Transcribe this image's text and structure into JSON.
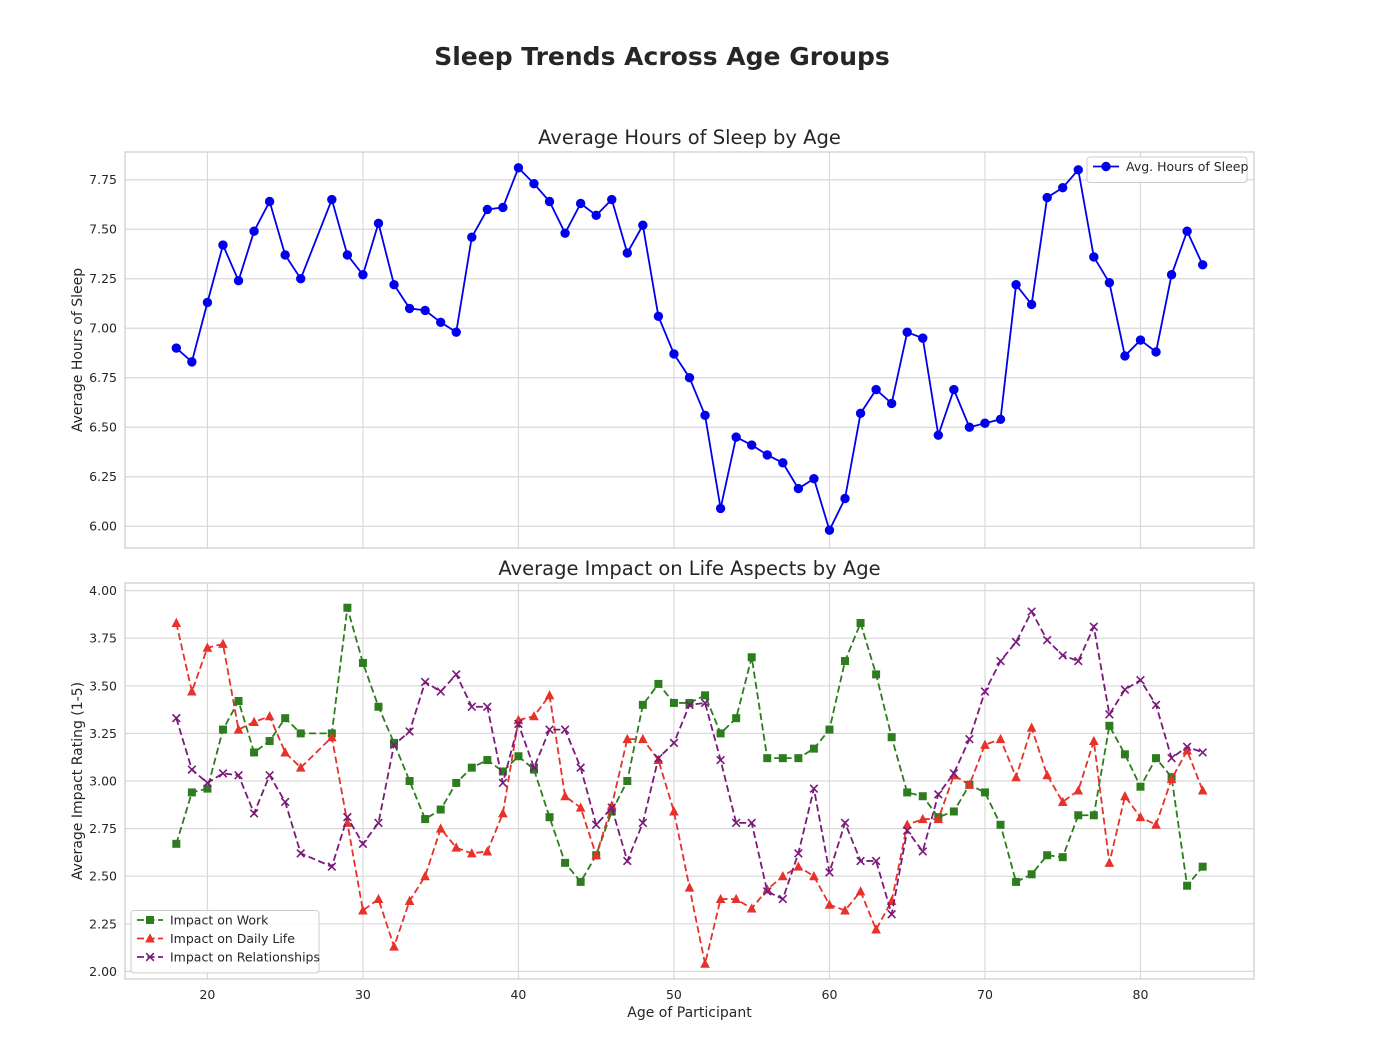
{
  "suptitle": "Sleep Trends Across Age Groups",
  "chart_data": [
    {
      "type": "line",
      "title": "Average Hours of Sleep by Age",
      "xlabel": "",
      "ylabel": "Average Hours of Sleep",
      "xlim": [
        14.7,
        87.3
      ],
      "ylim": [
        5.89,
        7.89
      ],
      "xticks": [
        20,
        30,
        40,
        50,
        60,
        70,
        80
      ],
      "yticks": [
        6.0,
        6.25,
        6.5,
        6.75,
        7.0,
        7.25,
        7.5,
        7.75
      ],
      "grid": true,
      "legend_position": "top-right",
      "x": [
        18,
        19,
        20,
        21,
        22,
        23,
        24,
        25,
        26,
        28,
        29,
        30,
        31,
        32,
        33,
        34,
        35,
        36,
        37,
        38,
        39,
        40,
        41,
        42,
        43,
        44,
        45,
        46,
        47,
        48,
        49,
        50,
        51,
        52,
        53,
        54,
        55,
        56,
        57,
        58,
        59,
        60,
        61,
        62,
        63,
        64,
        65,
        66,
        67,
        68,
        69,
        70,
        71,
        72,
        73,
        74,
        75,
        76,
        77,
        78,
        79,
        80,
        81,
        82,
        83,
        84
      ],
      "series": [
        {
          "name": "Avg. Hours of Sleep",
          "color": "#0000ee",
          "marker": "circle",
          "linestyle": "solid",
          "values": [
            6.9,
            6.83,
            7.13,
            7.42,
            7.24,
            7.49,
            7.64,
            7.37,
            7.25,
            7.65,
            7.37,
            7.27,
            7.53,
            7.22,
            7.1,
            7.09,
            7.03,
            6.98,
            7.46,
            7.6,
            7.61,
            7.81,
            7.73,
            7.64,
            7.48,
            7.63,
            7.57,
            7.65,
            7.38,
            7.52,
            7.06,
            6.87,
            6.75,
            6.56,
            6.09,
            6.45,
            6.41,
            6.36,
            6.32,
            6.19,
            6.24,
            5.98,
            6.14,
            6.57,
            6.69,
            6.62,
            6.98,
            6.95,
            6.46,
            6.69,
            6.5,
            6.52,
            6.54,
            7.22,
            7.12,
            7.66,
            7.71,
            7.8,
            7.36,
            7.23,
            6.86,
            6.94,
            6.88,
            7.27,
            7.49,
            7.32
          ]
        }
      ]
    },
    {
      "type": "line",
      "title": "Average Impact on Life Aspects by Age",
      "xlabel": "Age of Participant",
      "ylabel": "Average Impact Rating (1-5)",
      "xlim": [
        14.7,
        87.3
      ],
      "ylim": [
        1.96,
        4.04
      ],
      "xticks": [
        20,
        30,
        40,
        50,
        60,
        70,
        80
      ],
      "yticks": [
        2.0,
        2.25,
        2.5,
        2.75,
        3.0,
        3.25,
        3.5,
        3.75,
        4.0
      ],
      "grid": true,
      "legend_position": "bottom-left",
      "x": [
        18,
        19,
        20,
        21,
        22,
        23,
        24,
        25,
        26,
        28,
        29,
        30,
        31,
        32,
        33,
        34,
        35,
        36,
        37,
        38,
        39,
        40,
        41,
        42,
        43,
        44,
        45,
        46,
        47,
        48,
        49,
        50,
        51,
        52,
        53,
        54,
        55,
        56,
        57,
        58,
        59,
        60,
        61,
        62,
        63,
        64,
        65,
        66,
        67,
        68,
        69,
        70,
        71,
        72,
        73,
        74,
        75,
        76,
        77,
        78,
        79,
        80,
        81,
        82,
        83,
        84
      ],
      "series": [
        {
          "name": "Impact on Work",
          "color": "#2d7d1e",
          "marker": "square",
          "linestyle": "dashed",
          "values": [
            2.67,
            2.94,
            2.96,
            3.27,
            3.42,
            3.15,
            3.21,
            3.33,
            3.25,
            3.25,
            3.91,
            3.62,
            3.39,
            3.2,
            3.0,
            2.8,
            2.85,
            2.99,
            3.07,
            3.11,
            3.05,
            3.13,
            3.06,
            2.81,
            2.57,
            2.47,
            2.61,
            2.84,
            3.0,
            3.4,
            3.51,
            3.41,
            3.41,
            3.45,
            3.25,
            3.33,
            3.65,
            3.12,
            3.12,
            3.12,
            3.17,
            3.27,
            3.63,
            3.83,
            3.56,
            3.23,
            2.94,
            2.92,
            2.81,
            2.84,
            2.98,
            2.94,
            2.77,
            2.47,
            2.51,
            2.61,
            2.6,
            2.82,
            2.82,
            3.29,
            3.14,
            2.97,
            3.12,
            3.02,
            2.45,
            2.55
          ]
        },
        {
          "name": "Impact on Daily Life",
          "color": "#e6322a",
          "marker": "triangle",
          "linestyle": "dashed",
          "values": [
            3.83,
            3.47,
            3.7,
            3.72,
            3.27,
            3.31,
            3.34,
            3.15,
            3.07,
            3.23,
            2.78,
            2.32,
            2.38,
            2.13,
            2.37,
            2.5,
            2.75,
            2.65,
            2.62,
            2.63,
            2.83,
            3.32,
            3.34,
            3.45,
            2.92,
            2.86,
            2.61,
            2.87,
            3.22,
            3.22,
            3.11,
            2.84,
            2.44,
            2.04,
            2.38,
            2.38,
            2.33,
            2.43,
            2.5,
            2.55,
            2.5,
            2.35,
            2.32,
            2.42,
            2.22,
            2.37,
            2.77,
            2.8,
            2.8,
            3.03,
            2.98,
            3.19,
            3.22,
            3.02,
            3.28,
            3.03,
            2.89,
            2.95,
            3.21,
            2.57,
            2.92,
            2.81,
            2.77,
            3.01,
            3.16,
            2.95
          ]
        },
        {
          "name": "Impact on Relationships",
          "color": "#7a1a7a",
          "marker": "x",
          "linestyle": "dashed",
          "values": [
            3.33,
            3.06,
            2.99,
            3.04,
            3.03,
            2.83,
            3.03,
            2.89,
            2.62,
            2.55,
            2.81,
            2.67,
            2.78,
            3.19,
            3.26,
            3.52,
            3.47,
            3.56,
            3.39,
            3.39,
            2.99,
            3.3,
            3.07,
            3.27,
            3.27,
            3.07,
            2.77,
            2.86,
            2.58,
            2.78,
            3.12,
            3.2,
            3.4,
            3.41,
            3.11,
            2.78,
            2.78,
            2.42,
            2.38,
            2.62,
            2.96,
            2.52,
            2.78,
            2.58,
            2.58,
            2.3,
            2.74,
            2.63,
            2.93,
            3.04,
            3.22,
            3.47,
            3.63,
            3.73,
            3.89,
            3.74,
            3.66,
            3.63,
            3.81,
            3.35,
            3.48,
            3.53,
            3.4,
            3.12,
            3.18,
            3.15
          ]
        }
      ]
    }
  ]
}
